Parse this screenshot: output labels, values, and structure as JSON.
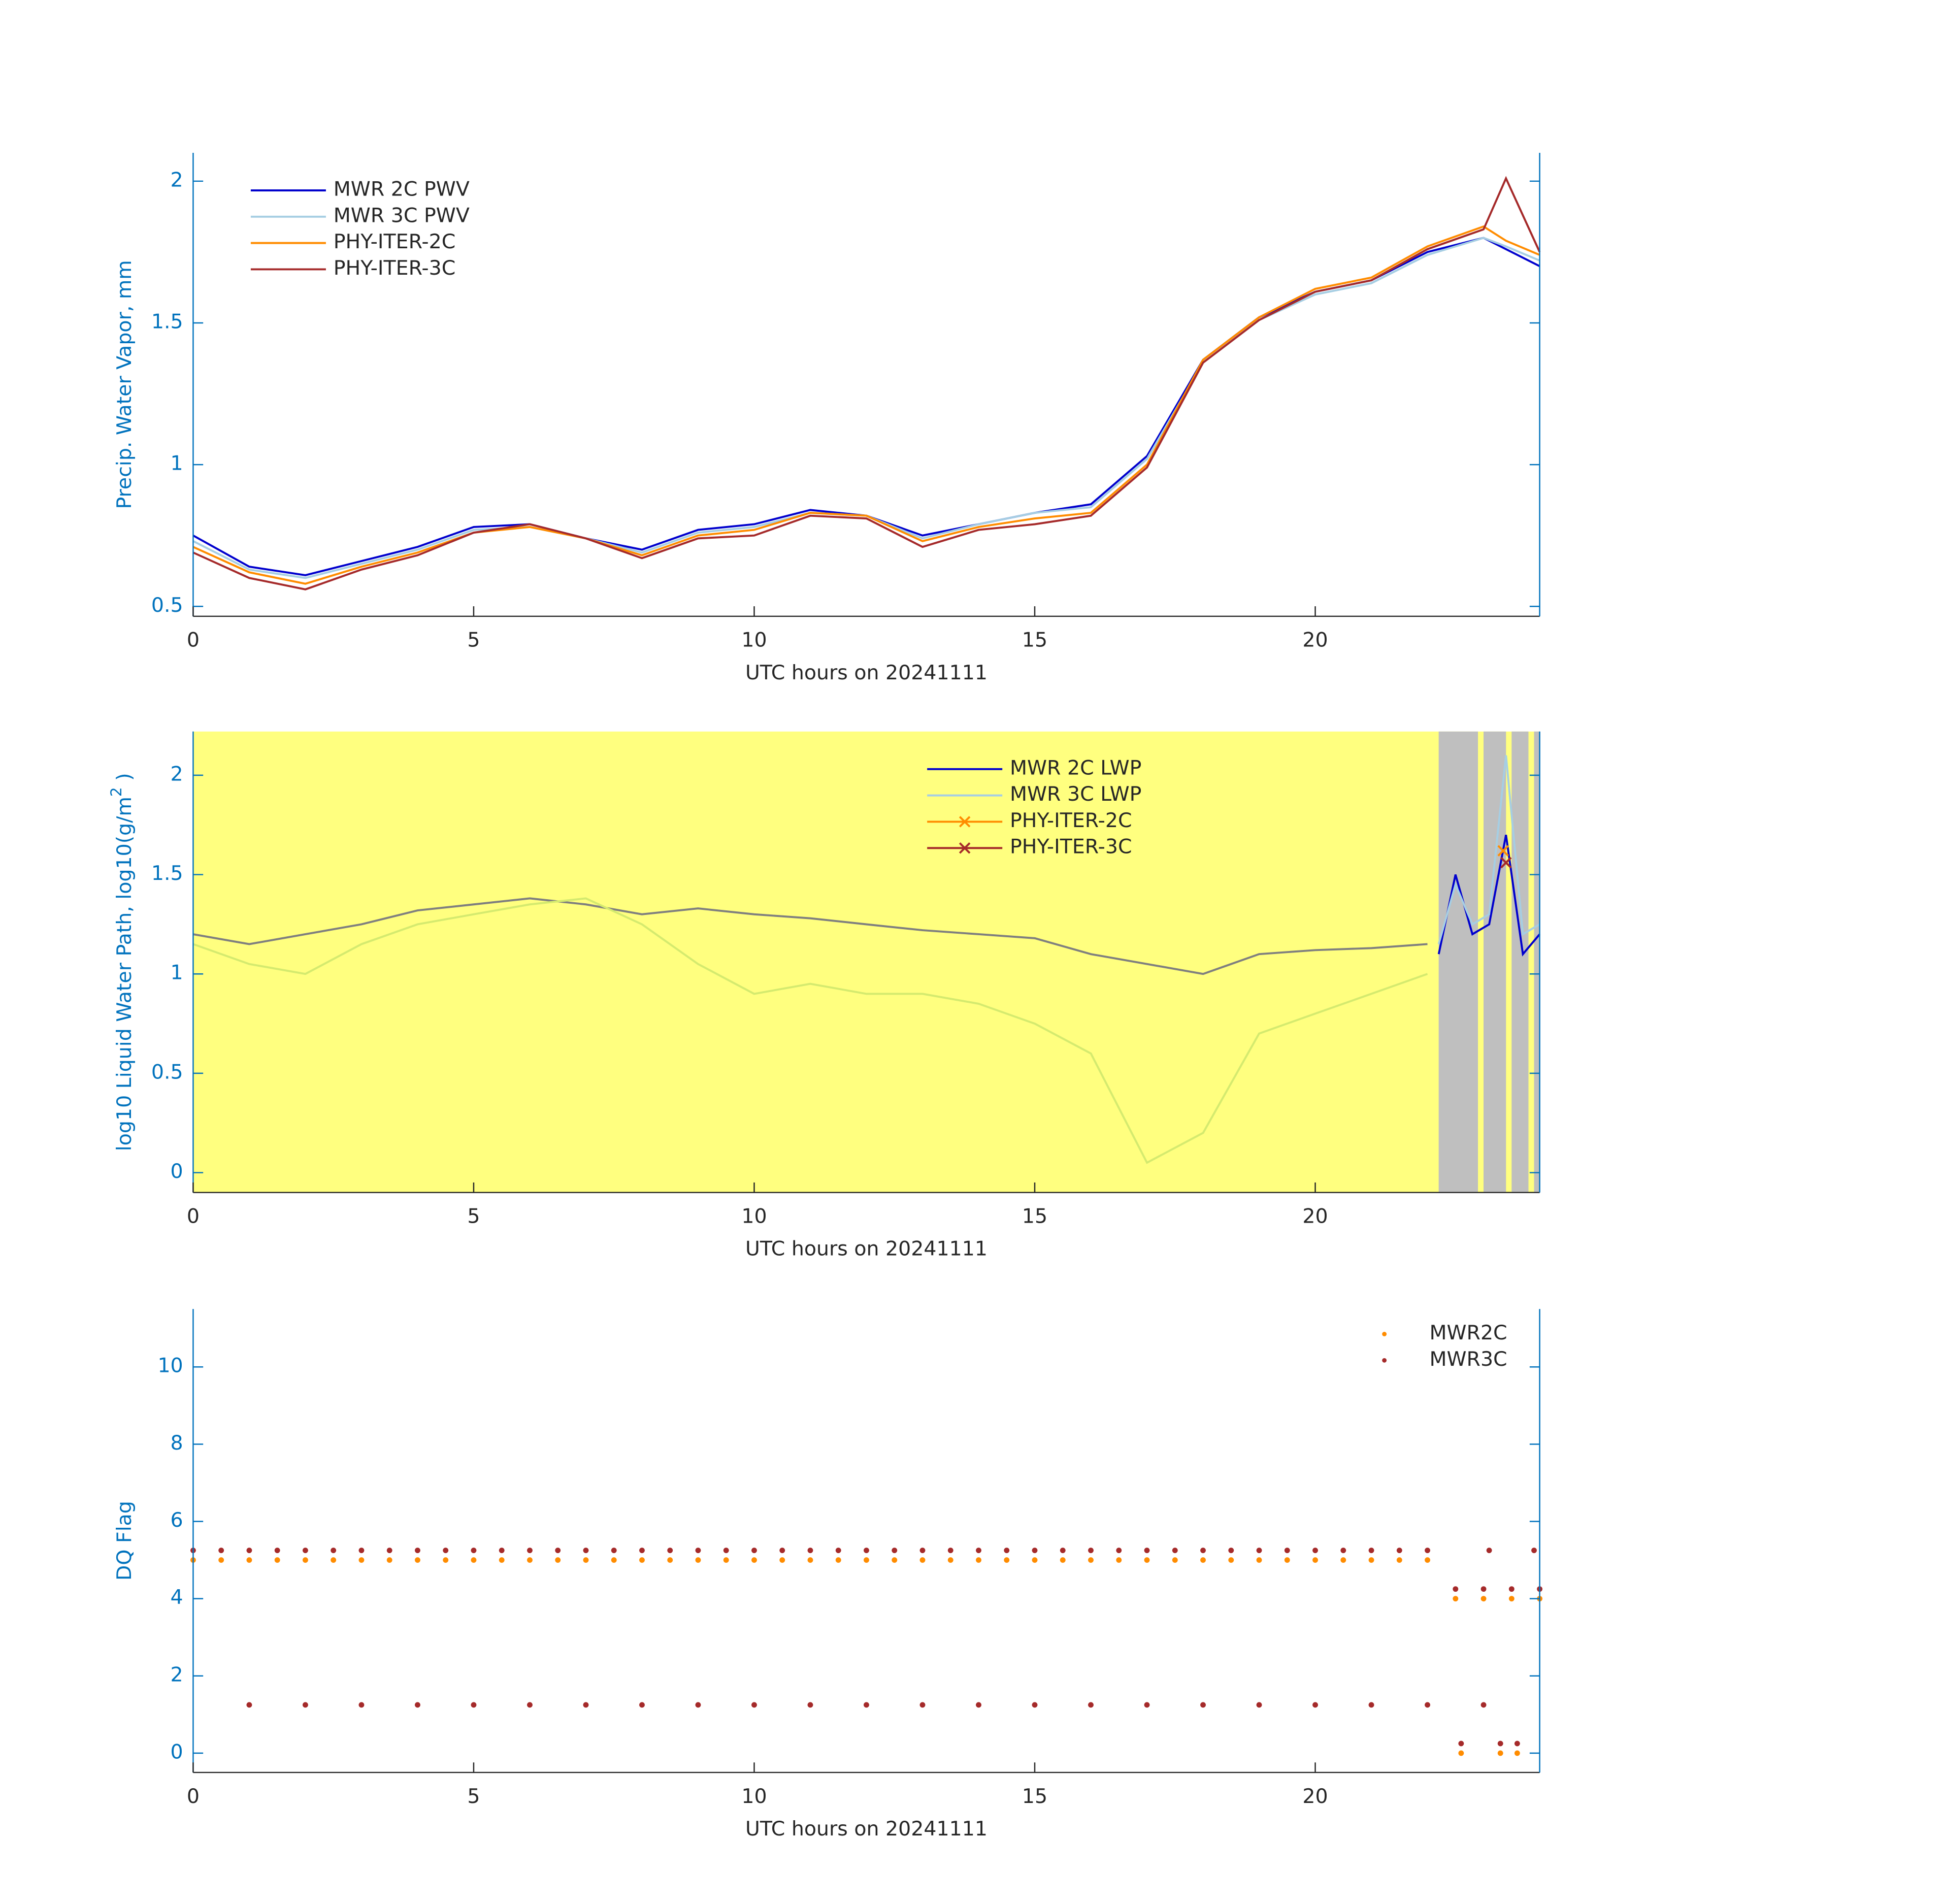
{
  "chart_data": [
    {
      "type": "line",
      "ylabel": "Precip. Water Vapor, mm",
      "xlabel": "UTC hours on 20241111",
      "x": [
        0,
        1,
        2,
        3,
        4,
        5,
        6,
        7,
        8,
        9,
        10,
        11,
        12,
        13,
        14,
        15,
        16,
        17,
        18,
        19,
        20,
        21,
        22,
        23,
        23.4,
        24
      ],
      "xlim": [
        0,
        24
      ],
      "xticks": [
        0,
        5,
        10,
        15,
        20
      ],
      "ylim": [
        0.465,
        2.1
      ],
      "yticks": [
        0.5,
        1,
        1.5,
        2
      ],
      "legend": "upper left",
      "series": [
        {
          "name": "MWR 2C PWV",
          "color": "#0000cd",
          "values": [
            0.75,
            0.64,
            0.61,
            0.66,
            0.71,
            0.78,
            0.79,
            0.74,
            0.7,
            0.77,
            0.79,
            0.84,
            0.82,
            0.75,
            0.79,
            0.83,
            0.86,
            1.03,
            1.37,
            1.52,
            1.61,
            1.65,
            1.75,
            1.8,
            1.76,
            1.7
          ]
        },
        {
          "name": "MWR 3C PWV",
          "color": "#a6cee3",
          "values": [
            0.73,
            0.63,
            0.6,
            0.65,
            0.7,
            0.77,
            0.78,
            0.74,
            0.69,
            0.76,
            0.78,
            0.83,
            0.82,
            0.74,
            0.79,
            0.83,
            0.85,
            1.02,
            1.36,
            1.51,
            1.6,
            1.64,
            1.74,
            1.8,
            1.77,
            1.72
          ]
        },
        {
          "name": "PHY-ITER-2C",
          "color": "#ff8c00",
          "values": [
            0.71,
            0.62,
            0.58,
            0.64,
            0.69,
            0.76,
            0.78,
            0.74,
            0.68,
            0.75,
            0.77,
            0.83,
            0.82,
            0.73,
            0.78,
            0.81,
            0.83,
            1.0,
            1.37,
            1.52,
            1.62,
            1.66,
            1.77,
            1.84,
            1.79,
            1.74
          ]
        },
        {
          "name": "PHY-ITER-3C",
          "color": "#a52a2a",
          "values": [
            0.69,
            0.6,
            0.56,
            0.63,
            0.68,
            0.76,
            0.79,
            0.74,
            0.67,
            0.74,
            0.75,
            0.82,
            0.81,
            0.71,
            0.77,
            0.79,
            0.82,
            0.99,
            1.36,
            1.51,
            1.61,
            1.65,
            1.76,
            1.83,
            2.01,
            1.75
          ]
        }
      ]
    },
    {
      "type": "line",
      "ylabel": "log10 Liquid Water Path, log10(g/m",
      "ylabel_superscript": "2",
      "ylabel_end": " )",
      "xlabel": "UTC hours on 20241111",
      "x": [
        0,
        1,
        2,
        3,
        4,
        5,
        6,
        7,
        8,
        9,
        10,
        11,
        12,
        13,
        14,
        15,
        16,
        17,
        18,
        19,
        20,
        21,
        22
      ],
      "xlim": [
        0,
        24
      ],
      "xticks": [
        0,
        5,
        10,
        15,
        20
      ],
      "ylim": [
        -0.1,
        2.22
      ],
      "yticks": [
        0,
        0.5,
        1,
        1.5,
        2
      ],
      "legend": "upper center",
      "background": "#ffff7f",
      "span_color": "#bfbfbf",
      "spans": [
        [
          22.2,
          22.9
        ],
        [
          23.0,
          23.4
        ],
        [
          23.5,
          23.8
        ],
        [
          23.9,
          24
        ]
      ],
      "series": [
        {
          "color": "#7f7f7f",
          "values": [
            1.2,
            1.15,
            1.2,
            1.25,
            1.32,
            1.35,
            1.38,
            1.35,
            1.3,
            1.33,
            1.3,
            1.28,
            1.25,
            1.22,
            1.2,
            1.18,
            1.1,
            1.05,
            1.0,
            1.1,
            1.12,
            1.13,
            1.15
          ]
        },
        {
          "color": "#d4ea6f",
          "values": [
            1.15,
            1.05,
            1.0,
            1.15,
            1.25,
            1.3,
            1.35,
            1.38,
            1.25,
            1.05,
            0.9,
            0.95,
            0.9,
            0.9,
            0.85,
            0.75,
            0.6,
            0.05,
            0.2,
            0.7,
            0.8,
            0.9,
            1.0
          ]
        },
        {
          "name": "MWR 2C LWP",
          "color": "#0000cd",
          "x": [
            22.2,
            22.5,
            22.8,
            23.1,
            23.4,
            23.7,
            24
          ],
          "values": [
            1.1,
            1.5,
            1.2,
            1.25,
            1.7,
            1.1,
            1.2
          ]
        },
        {
          "name": "MWR 3C LWP",
          "color": "#a6cee3",
          "x": [
            22.2,
            22.5,
            22.8,
            23.1,
            23.4,
            23.7,
            24
          ],
          "values": [
            1.15,
            1.45,
            1.25,
            1.3,
            2.1,
            1.2,
            1.25
          ]
        },
        {
          "name": "PHY-ITER-2C",
          "color": "#ff8c00",
          "marker": "x",
          "x": [
            23.35
          ],
          "values": [
            1.62
          ]
        },
        {
          "name": "PHY-ITER-3C",
          "color": "#a52a2a",
          "marker": "x",
          "x": [
            23.4
          ],
          "values": [
            1.56
          ]
        }
      ]
    },
    {
      "type": "scatter",
      "ylabel": "DQ Flag",
      "xlabel": "UTC hours on 20241111",
      "xlim": [
        0,
        24
      ],
      "xticks": [
        0,
        5,
        10,
        15,
        20
      ],
      "ylim": [
        -0.5,
        11.5
      ],
      "yticks": [
        0,
        2,
        4,
        6,
        8,
        10
      ],
      "legend": "upper right",
      "series": [
        {
          "name": "MWR2C",
          "color": "#ff8c00",
          "x": [
            0,
            0.5,
            1,
            1.5,
            2,
            2.5,
            3,
            3.5,
            4,
            4.5,
            5,
            5.5,
            6,
            6.5,
            7,
            7.5,
            8,
            8.5,
            9,
            9.5,
            10,
            10.5,
            11,
            11.5,
            12,
            12.5,
            13,
            13.5,
            14,
            14.5,
            15,
            15.5,
            16,
            16.5,
            17,
            17.5,
            18,
            18.5,
            19,
            19.5,
            20,
            20.5,
            21,
            21.5,
            22,
            22.5,
            23,
            23.5,
            24,
            22.6,
            23.3,
            23.6
          ],
          "values": [
            5,
            5,
            5,
            5,
            5,
            5,
            5,
            5,
            5,
            5,
            5,
            5,
            5,
            5,
            5,
            5,
            5,
            5,
            5,
            5,
            5,
            5,
            5,
            5,
            5,
            5,
            5,
            5,
            5,
            5,
            5,
            5,
            5,
            5,
            5,
            5,
            5,
            5,
            5,
            5,
            5,
            5,
            5,
            5,
            5,
            4,
            4,
            4,
            4,
            0,
            0,
            0
          ]
        },
        {
          "name": "MWR3C",
          "color": "#a52a2a",
          "x": [
            0,
            0.5,
            1,
            1.5,
            2,
            2.5,
            3,
            3.5,
            4,
            4.5,
            5,
            5.5,
            6,
            6.5,
            7,
            7.5,
            8,
            8.5,
            9,
            9.5,
            10,
            10.5,
            11,
            11.5,
            12,
            12.5,
            13,
            13.5,
            14,
            14.5,
            15,
            15.5,
            16,
            16.5,
            17,
            17.5,
            18,
            18.5,
            19,
            19.5,
            20,
            20.5,
            21,
            21.5,
            22,
            22.5,
            23,
            23.5,
            24,
            23.1,
            23.9,
            1,
            2,
            3,
            4,
            5,
            6,
            7,
            8,
            9,
            10,
            11,
            12,
            13,
            14,
            15,
            16,
            17,
            18,
            19,
            20,
            21,
            22,
            23,
            22.6,
            23.3,
            23.6
          ],
          "values": [
            5.25,
            5.25,
            5.25,
            5.25,
            5.25,
            5.25,
            5.25,
            5.25,
            5.25,
            5.25,
            5.25,
            5.25,
            5.25,
            5.25,
            5.25,
            5.25,
            5.25,
            5.25,
            5.25,
            5.25,
            5.25,
            5.25,
            5.25,
            5.25,
            5.25,
            5.25,
            5.25,
            5.25,
            5.25,
            5.25,
            5.25,
            5.25,
            5.25,
            5.25,
            5.25,
            5.25,
            5.25,
            5.25,
            5.25,
            5.25,
            5.25,
            5.25,
            5.25,
            5.25,
            5.25,
            4.25,
            4.25,
            4.25,
            4.25,
            5.25,
            5.25,
            1.25,
            1.25,
            1.25,
            1.25,
            1.25,
            1.25,
            1.25,
            1.25,
            1.25,
            1.25,
            1.25,
            1.25,
            1.25,
            1.25,
            1.25,
            1.25,
            1.25,
            1.25,
            1.25,
            1.25,
            1.25,
            1.25,
            1.25,
            0.25,
            0.25,
            0.25
          ]
        }
      ]
    }
  ]
}
